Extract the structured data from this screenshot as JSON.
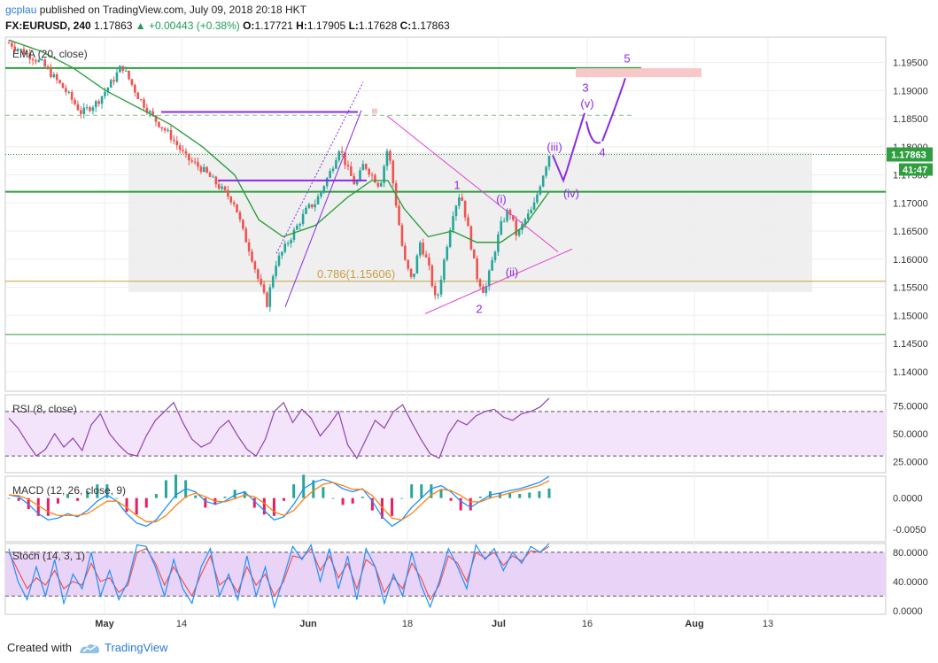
{
  "header": {
    "user": "gcplau",
    "published": " published on TradingView.com, July 09, 2018 20:18 HKT",
    "symbol": "FX:EURUSD, 240",
    "last": "1.17863",
    "change": "▲ +0.00443 (+0.38%)",
    "open_label": "O:",
    "open": "1.17721",
    "high_label": "H:",
    "high": "1.17905",
    "low_label": "L:",
    "low": "1.17628",
    "close_label": "C:",
    "close": "1.17863"
  },
  "footer": {
    "created_with": "Created with",
    "brand": "TradingView"
  },
  "colors": {
    "bull": "#26a69a",
    "bear": "#ef5350",
    "ema": "#2e9e3e",
    "wave": "#8a2be2",
    "triangle": "#e040d0",
    "rsi": "#8e44ad",
    "macd": "#1e90ff",
    "signal": "#ff7f0e",
    "hist_pos": "#26a69a",
    "hist_neg": "#e91e63",
    "stoch_k": "#1e90ff",
    "stoch_d": "#ef5350",
    "price_tag": "#2e9e3e"
  },
  "chart_data": [
    {
      "type": "candlestick",
      "indicator": "EMA (20, close)",
      "ylim": [
        1.1365,
        1.1995
      ],
      "yticks": [
        "1.19500",
        "1.19000",
        "1.18500",
        "1.18000",
        "1.17500",
        "1.17000",
        "1.16500",
        "1.16000",
        "1.15500",
        "1.15000",
        "1.14500",
        "1.14000"
      ],
      "x_labels": [
        "May",
        "14",
        "Jun",
        "18",
        "Jul",
        "16",
        "Aug",
        "13"
      ],
      "current_price": "1.17863",
      "countdown": "41:47",
      "annotations": {
        "fib": "0.786(1.15606)",
        "waves": [
          "1",
          "2",
          "3",
          "4",
          "5",
          "(i)",
          "(ii)",
          "(iii)",
          "(iv)",
          "(v)"
        ]
      },
      "key_levels": {
        "fib_level": 1.15606,
        "upper_green": 1.194,
        "mid_green": 1.172,
        "lower_green": 1.1466,
        "dashed_green": 1.1856,
        "dotted_price": 1.17863,
        "target_zone": [
          1.1927,
          1.1935
        ]
      },
      "price_path": [
        [
          0,
          1.1985
        ],
        [
          4,
          1.195
        ],
        [
          7,
          1.19
        ],
        [
          9,
          1.186
        ],
        [
          11,
          1.188
        ],
        [
          13,
          1.192
        ],
        [
          14,
          1.1945
        ],
        [
          16,
          1.189
        ],
        [
          18,
          1.185
        ],
        [
          20,
          1.182
        ],
        [
          22,
          1.178
        ],
        [
          24,
          1.176
        ],
        [
          26,
          1.173
        ],
        [
          28,
          1.17
        ],
        [
          29,
          1.165
        ],
        [
          30,
          1.161
        ],
        [
          31,
          1.156
        ],
        [
          32,
          1.152
        ],
        [
          33,
          1.159
        ],
        [
          35,
          1.164
        ],
        [
          37,
          1.169
        ],
        [
          38,
          1.17
        ],
        [
          40,
          1.176
        ],
        [
          41,
          1.18
        ],
        [
          42,
          1.176
        ],
        [
          43,
          1.173
        ],
        [
          44,
          1.177
        ],
        [
          45,
          1.175
        ],
        [
          46,
          1.173
        ],
        [
          47,
          1.18
        ],
        [
          48,
          1.17
        ],
        [
          49,
          1.16
        ],
        [
          50,
          1.156
        ],
        [
          51,
          1.163
        ],
        [
          52,
          1.159
        ],
        [
          53,
          1.152
        ],
        [
          54,
          1.16
        ],
        [
          55,
          1.168
        ],
        [
          56,
          1.172
        ],
        [
          57,
          1.165
        ],
        [
          58,
          1.157
        ],
        [
          59,
          1.154
        ],
        [
          60,
          1.16
        ],
        [
          61,
          1.166
        ],
        [
          62,
          1.169
        ],
        [
          63,
          1.164
        ],
        [
          64,
          1.167
        ],
        [
          65,
          1.169
        ],
        [
          66,
          1.174
        ],
        [
          67,
          1.1786
        ]
      ],
      "ema_path": [
        [
          0,
          1.199
        ],
        [
          4,
          1.197
        ],
        [
          8,
          1.194
        ],
        [
          12,
          1.19
        ],
        [
          16,
          1.187
        ],
        [
          20,
          1.184
        ],
        [
          24,
          1.18
        ],
        [
          28,
          1.175
        ],
        [
          31,
          1.167
        ],
        [
          34,
          1.164
        ],
        [
          38,
          1.166
        ],
        [
          42,
          1.171
        ],
        [
          45,
          1.174
        ],
        [
          47,
          1.174
        ],
        [
          49,
          1.169
        ],
        [
          52,
          1.164
        ],
        [
          55,
          1.165
        ],
        [
          58,
          1.163
        ],
        [
          61,
          1.163
        ],
        [
          64,
          1.166
        ],
        [
          67,
          1.172
        ]
      ]
    },
    {
      "type": "line",
      "indicator": "RSI (8, close)",
      "ylim": [
        15,
        85
      ],
      "yticks": [
        "75.0000",
        "50.0000",
        "25.0000"
      ],
      "band": [
        30,
        70
      ],
      "values": [
        64,
        55,
        42,
        30,
        36,
        50,
        38,
        46,
        35,
        58,
        68,
        50,
        40,
        32,
        30,
        48,
        62,
        70,
        78,
        60,
        45,
        38,
        42,
        55,
        62,
        48,
        36,
        30,
        45,
        70,
        78,
        60,
        72,
        64,
        48,
        58,
        70,
        40,
        28,
        45,
        62,
        55,
        70,
        76,
        60,
        45,
        32,
        28,
        50,
        62,
        58,
        66,
        70,
        72,
        65,
        62,
        68,
        70,
        74,
        82
      ]
    },
    {
      "type": "line",
      "indicator": "MACD (12, 26, close, 9)",
      "ylim": [
        -0.007,
        0.0035
      ],
      "yticks": [
        "0.0000",
        "-0.0050"
      ],
      "macd": [
        0.0005,
        0.0002,
        -0.001,
        -0.0025,
        -0.0035,
        -0.0032,
        -0.0025,
        -0.003,
        -0.002,
        -0.0005,
        0.0005,
        -0.0005,
        -0.0025,
        -0.004,
        -0.0045,
        -0.0035,
        -0.0015,
        0.0005,
        0.0015,
        0.001,
        -0.0005,
        -0.001,
        -0.0005,
        0.0005,
        0.001,
        -0.0005,
        -0.002,
        -0.0035,
        -0.003,
        -0.001,
        0.0015,
        0.0025,
        0.003,
        0.0025,
        0.0015,
        0.001,
        0.0015,
        -0.0005,
        -0.003,
        -0.0045,
        -0.0035,
        -0.0015,
        0.0,
        0.0015,
        0.002,
        0.001,
        -0.0005,
        -0.0015,
        -0.0005,
        0.0005,
        0.0008,
        0.0012,
        0.0015,
        0.002,
        0.0025,
        0.0035
      ],
      "signal": [
        0.0005,
        0.0004,
        -0.0002,
        -0.0012,
        -0.0022,
        -0.0028,
        -0.0028,
        -0.0028,
        -0.0025,
        -0.0015,
        -0.0005,
        -0.0005,
        -0.0015,
        -0.0028,
        -0.0038,
        -0.0038,
        -0.0028,
        -0.0012,
        0.0002,
        0.0008,
        0.0002,
        -0.0005,
        -0.0006,
        -0.0001,
        0.0005,
        0.0002,
        -0.0008,
        -0.0022,
        -0.0028,
        -0.002,
        -0.0002,
        0.0012,
        0.0022,
        0.0025,
        0.002,
        0.0014,
        0.0014,
        0.0004,
        -0.0015,
        -0.0032,
        -0.0035,
        -0.0025,
        -0.001,
        0.0005,
        0.0014,
        0.0012,
        0.0004,
        -0.0006,
        -0.0006,
        0.0,
        0.0004,
        0.0008,
        0.0012,
        0.0016,
        0.002,
        0.0028
      ]
    },
    {
      "type": "line",
      "indicator": "Stoch (14, 3, 1)",
      "ylim": [
        -5,
        92
      ],
      "yticks": [
        "80.0000",
        "40.0000",
        "0.0000"
      ],
      "band": [
        20,
        80
      ],
      "k": [
        85,
        40,
        15,
        60,
        20,
        70,
        10,
        50,
        30,
        80,
        20,
        55,
        15,
        40,
        90,
        88,
        60,
        20,
        70,
        30,
        10,
        60,
        85,
        20,
        50,
        15,
        75,
        20,
        60,
        5,
        45,
        88,
        70,
        90,
        40,
        85,
        30,
        75,
        15,
        85,
        60,
        10,
        50,
        20,
        80,
        35,
        5,
        40,
        85,
        60,
        30,
        90,
        70,
        85,
        55,
        80,
        65,
        88,
        80,
        92
      ],
      "d": [
        80,
        55,
        30,
        45,
        35,
        55,
        30,
        40,
        35,
        65,
        40,
        45,
        25,
        35,
        80,
        85,
        65,
        35,
        60,
        40,
        20,
        50,
        75,
        35,
        45,
        25,
        60,
        35,
        50,
        20,
        40,
        75,
        72,
        85,
        55,
        75,
        45,
        65,
        30,
        70,
        60,
        25,
        45,
        30,
        65,
        45,
        15,
        35,
        75,
        65,
        40,
        80,
        72,
        80,
        62,
        75,
        68,
        82,
        80,
        88
      ]
    }
  ]
}
